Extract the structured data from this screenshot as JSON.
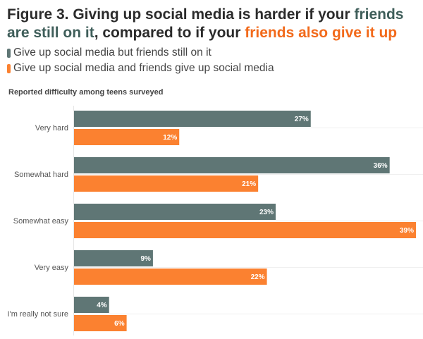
{
  "title": {
    "part1": "Figure 3. Giving up social media is harder if your ",
    "part2": "friends are still on it",
    "part3": ", compared to if your ",
    "part4": "friends also give it up"
  },
  "legend": [
    {
      "label": "Give up social media but friends still on it",
      "color": "#5f7675"
    },
    {
      "label": "Give up social media and friends give up social media",
      "color": "#fb8130"
    }
  ],
  "subtitle": "Reported difficulty among teens surveyed",
  "chart_data": {
    "type": "bar",
    "orientation": "horizontal",
    "title": "Figure 3. Giving up social media is harder if your friends are still on it, compared to if your friends also give it up",
    "subtitle": "Reported difficulty among teens surveyed",
    "categories": [
      "Very hard",
      "Somewhat hard",
      "Somewhat easy",
      "Very easy",
      "I'm really not sure"
    ],
    "series": [
      {
        "name": "Give up social media but friends still on it",
        "color": "#5f7675",
        "values": [
          27,
          36,
          23,
          9,
          4
        ],
        "labels": [
          "27%",
          "36%",
          "23%",
          "9%",
          "4%"
        ]
      },
      {
        "name": "Give up social media and friends give up social media",
        "color": "#fb8130",
        "values": [
          12,
          21,
          39,
          22,
          6
        ],
        "labels": [
          "12%",
          "21%",
          "39%",
          "22%",
          "6%"
        ]
      }
    ],
    "xlim": [
      0,
      39
    ],
    "legend_position": "top-left",
    "grid": false
  }
}
